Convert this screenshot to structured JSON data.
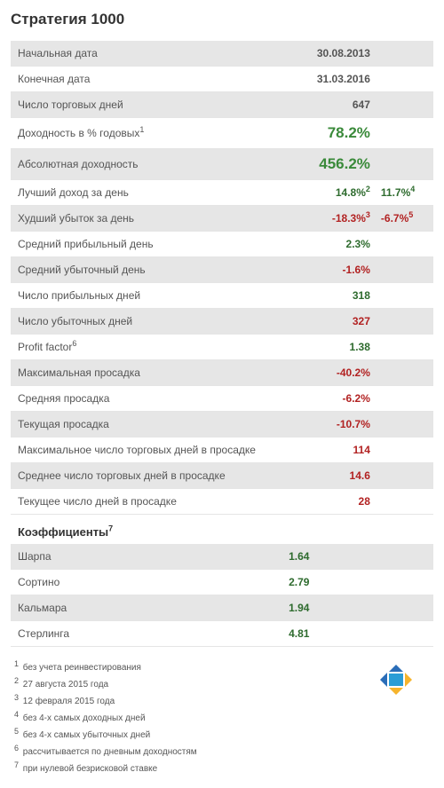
{
  "title": "Стратегия 1000",
  "rows": [
    {
      "label": "Начальная дата",
      "value": "30.08.2013",
      "valueClass": "",
      "labelSup": "",
      "valueSup": "",
      "extra": "",
      "extraSup": "",
      "extraClass": "",
      "alt": true
    },
    {
      "label": "Конечная дата",
      "value": "31.03.2016",
      "valueClass": "",
      "labelSup": "",
      "valueSup": "",
      "extra": "",
      "extraSup": "",
      "extraClass": "",
      "alt": false
    },
    {
      "label": "Число торговых дней",
      "value": "647",
      "valueClass": "",
      "labelSup": "",
      "valueSup": "",
      "extra": "",
      "extraSup": "",
      "extraClass": "",
      "alt": true
    },
    {
      "label": "Доходность в % годовых",
      "value": "78.2%",
      "valueClass": "green big",
      "labelSup": "1",
      "valueSup": "",
      "extra": "",
      "extraSup": "",
      "extraClass": "",
      "alt": false
    },
    {
      "label": "Абсолютная доходность",
      "value": "456.2%",
      "valueClass": "green big",
      "labelSup": "",
      "valueSup": "",
      "extra": "",
      "extraSup": "",
      "extraClass": "",
      "alt": true
    },
    {
      "label": "Лучший доход за день",
      "value": "14.8%",
      "valueClass": "darkgreen",
      "labelSup": "",
      "valueSup": "2",
      "extra": "11.7%",
      "extraSup": "4",
      "extraClass": "darkgreen",
      "alt": false
    },
    {
      "label": "Худший убыток за день",
      "value": "-18.3%",
      "valueClass": "red",
      "labelSup": "",
      "valueSup": "3",
      "extra": "-6.7%",
      "extraSup": "5",
      "extraClass": "red",
      "alt": true
    },
    {
      "label": "Средний прибыльный день",
      "value": "2.3%",
      "valueClass": "darkgreen",
      "labelSup": "",
      "valueSup": "",
      "extra": "",
      "extraSup": "",
      "extraClass": "",
      "alt": false
    },
    {
      "label": "Средний убыточный день",
      "value": "-1.6%",
      "valueClass": "red",
      "labelSup": "",
      "valueSup": "",
      "extra": "",
      "extraSup": "",
      "extraClass": "",
      "alt": true
    },
    {
      "label": "Число прибыльных дней",
      "value": "318",
      "valueClass": "darkgreen",
      "labelSup": "",
      "valueSup": "",
      "extra": "",
      "extraSup": "",
      "extraClass": "",
      "alt": false
    },
    {
      "label": "Число убыточных дней",
      "value": "327",
      "valueClass": "red",
      "labelSup": "",
      "valueSup": "",
      "extra": "",
      "extraSup": "",
      "extraClass": "",
      "alt": true
    },
    {
      "label": "Profit factor",
      "value": "1.38",
      "valueClass": "darkgreen",
      "labelSup": "6",
      "valueSup": "",
      "extra": "",
      "extraSup": "",
      "extraClass": "",
      "alt": false
    },
    {
      "label": "Максимальная просадка",
      "value": "-40.2%",
      "valueClass": "red",
      "labelSup": "",
      "valueSup": "",
      "extra": "",
      "extraSup": "",
      "extraClass": "",
      "alt": true
    },
    {
      "label": "Средняя просадка",
      "value": "-6.2%",
      "valueClass": "red",
      "labelSup": "",
      "valueSup": "",
      "extra": "",
      "extraSup": "",
      "extraClass": "",
      "alt": false
    },
    {
      "label": "Текущая просадка",
      "value": "-10.7%",
      "valueClass": "red",
      "labelSup": "",
      "valueSup": "",
      "extra": "",
      "extraSup": "",
      "extraClass": "",
      "alt": true
    },
    {
      "label": "Максимальное число торговых дней в просадке",
      "value": "114",
      "valueClass": "red",
      "labelSup": "",
      "valueSup": "",
      "extra": "",
      "extraSup": "",
      "extraClass": "",
      "alt": false
    },
    {
      "label": "Среднее число торговых дней в просадке",
      "value": "14.6",
      "valueClass": "red",
      "labelSup": "",
      "valueSup": "",
      "extra": "",
      "extraSup": "",
      "extraClass": "",
      "alt": true
    },
    {
      "label": "Текущее число дней в просадке",
      "value": "28",
      "valueClass": "red",
      "labelSup": "",
      "valueSup": "",
      "extra": "",
      "extraSup": "",
      "extraClass": "",
      "alt": false
    }
  ],
  "section2": {
    "title": "Коэффициенты",
    "titleSup": "7",
    "rows": [
      {
        "label": "Шарпа",
        "value": "1.64",
        "valueClass": "darkgreen",
        "alt": true
      },
      {
        "label": "Сортино",
        "value": "2.79",
        "valueClass": "darkgreen",
        "alt": false
      },
      {
        "label": "Кальмара",
        "value": "1.94",
        "valueClass": "darkgreen",
        "alt": true
      },
      {
        "label": "Стерлинга",
        "value": "4.81",
        "valueClass": "darkgreen",
        "alt": false
      }
    ]
  },
  "footnotes": [
    {
      "num": "1",
      "text": "без учета реинвестирования"
    },
    {
      "num": "2",
      "text": "27 августа 2015 года"
    },
    {
      "num": "3",
      "text": "12 февраля 2015 года"
    },
    {
      "num": "4",
      "text": "без 4-х самых доходных дней"
    },
    {
      "num": "5",
      "text": "без 4-х самых убыточных дней"
    },
    {
      "num": "6",
      "text": "рассчитывается по дневным доходностям"
    },
    {
      "num": "7",
      "text": "при нулевой безрисковой ставке"
    }
  ]
}
